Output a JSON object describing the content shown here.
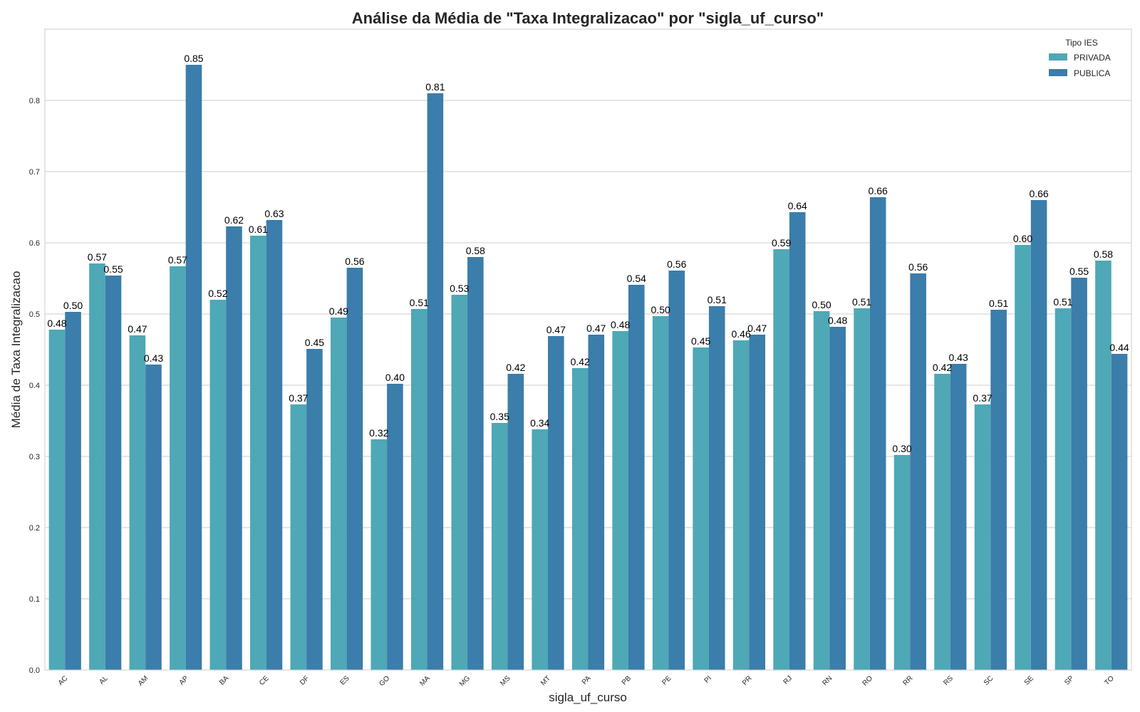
{
  "chart_data": {
    "type": "bar",
    "title": "Análise da Média de \"Taxa Integralizacao\" por \"sigla_uf_curso\"",
    "xlabel": "sigla_uf_curso",
    "ylabel": "Média de Taxa Integralizacao",
    "ylim": [
      0,
      0.9
    ],
    "yticks": [
      "0.0",
      "0.1",
      "0.2",
      "0.3",
      "0.4",
      "0.5",
      "0.6",
      "0.7",
      "0.8"
    ],
    "grid": true,
    "legend_title": "Tipo IES",
    "legend_position": "top-right",
    "categories": [
      "AC",
      "AL",
      "AM",
      "AP",
      "BA",
      "CE",
      "DF",
      "ES",
      "GO",
      "MA",
      "MG",
      "MS",
      "MT",
      "PA",
      "PB",
      "PE",
      "PI",
      "PR",
      "RJ",
      "RN",
      "RO",
      "RR",
      "RS",
      "SC",
      "SE",
      "SP",
      "TO"
    ],
    "series": [
      {
        "name": "PRIVADA",
        "color": "#4ea8b6",
        "values": [
          0.478,
          0.571,
          0.47,
          0.567,
          0.52,
          0.61,
          0.373,
          0.495,
          0.324,
          0.507,
          0.527,
          0.347,
          0.338,
          0.424,
          0.476,
          0.497,
          0.453,
          0.463,
          0.591,
          0.504,
          0.508,
          0.302,
          0.416,
          0.373,
          0.597,
          0.508,
          0.575
        ],
        "labels": [
          "0.48",
          "0.57",
          "0.47",
          "0.57",
          "0.52",
          "0.61",
          "0.37",
          "0.49",
          "0.32",
          "0.51",
          "0.53",
          "0.35",
          "0.34",
          "0.42",
          "0.48",
          "0.50",
          "0.45",
          "0.46",
          "0.59",
          "0.50",
          "0.51",
          "0.30",
          "0.42",
          "0.37",
          "0.60",
          "0.51",
          "0.58"
        ]
      },
      {
        "name": "PUBLICA",
        "color": "#3b7dab",
        "values": [
          0.503,
          0.554,
          0.429,
          0.85,
          0.623,
          0.632,
          0.451,
          0.565,
          0.402,
          0.81,
          0.58,
          0.416,
          0.469,
          0.471,
          0.541,
          0.561,
          0.511,
          0.471,
          0.643,
          0.482,
          0.664,
          0.557,
          0.43,
          0.506,
          0.66,
          0.551,
          0.444
        ],
        "labels": [
          "0.50",
          "0.55",
          "0.43",
          "0.85",
          "0.62",
          "0.63",
          "0.45",
          "0.56",
          "0.40",
          "0.81",
          "0.58",
          "0.42",
          "0.47",
          "0.47",
          "0.54",
          "0.56",
          "0.51",
          "0.47",
          "0.64",
          "0.48",
          "0.66",
          "0.56",
          "0.43",
          "0.51",
          "0.66",
          "0.55",
          "0.44"
        ]
      }
    ]
  }
}
